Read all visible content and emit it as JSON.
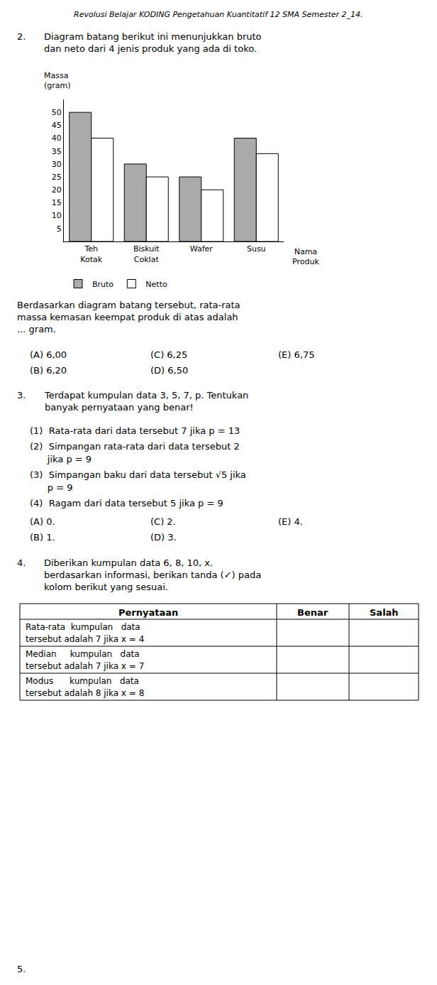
{
  "chart_data": {
    "type": "bar",
    "categories": [
      "Teh\nKotak",
      "Biskuit\nCoklat",
      "Wafer",
      "Susu"
    ],
    "series": [
      {
        "name": "Bruto",
        "color": "#aaaaaa",
        "values": [
          50,
          30,
          25,
          40
        ]
      },
      {
        "name": "Netto",
        "color": "#ffffff",
        "values": [
          40,
          25,
          20,
          34
        ]
      }
    ],
    "xlabel": "Nama\nProduk",
    "ylabel": "Massa\n(gram)",
    "ylim": [
      0,
      55
    ],
    "yticks": [
      5,
      10,
      15,
      20,
      25,
      30,
      35,
      40,
      45,
      50
    ],
    "grid": false,
    "legend": "bottom",
    "annotations": [
      "Revolusi Belajar KODING Pengetahuan Kuantitatif 12 SMA Semester 2_14.",
      "2.",
      "Diagram batang berikut ini menunjukkan bruto\ndan neto dari 4 jenis produk yang ada di toko.",
      "Berdasarkan diagram batang tersebut, rata-rata\nmassa kemasan keempat produk di atas adalah\n... gram.",
      "(A) 6,00",
      "(C) 6,25",
      "(E) 6,75",
      "(B) 6,20",
      "(D) 6,50",
      "3.",
      "Terdapat kumpulan data 3, 5, 7, p. Tentukan\nbanyak pernyataan yang benar!",
      "(1)  Rata-rata dari data tersebut 7 jika p = 13",
      "(2)  Simpangan rata-rata dari data tersebut 2",
      "      jika p = 9",
      "(3)  Simpangan baku dari data tersebut √5 jika",
      "      p = 9",
      "(4)  Ragam dari data tersebut 5 jika p = 9",
      "(A) 0.",
      "(C) 2.",
      "(E) 4.",
      "(B) 1.",
      "(D) 3.",
      "4.",
      "Diberikan kumpulan data 6, 8, 10, x.\nberdasarkan informasi, berikan tanda (✓) pada\nkolom berikut yang sesuai.",
      "Pernyataan",
      "Benar",
      "Salah",
      "Rata-rata  kumpulan   data",
      "tersebut adalah 7 jika x = 4",
      "Median     kumpulan   data",
      "tersebut adalah 7 jika x = 7",
      "Modus      kumpulan   data",
      "tersebut adalah 8 jika x = 8",
      "5."
    ]
  }
}
